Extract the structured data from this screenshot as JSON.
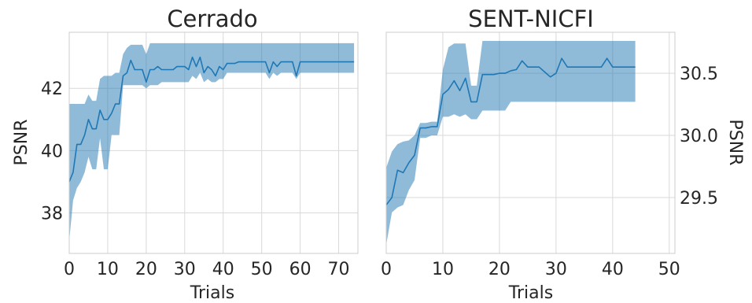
{
  "chart_data": [
    {
      "type": "line",
      "title": "Cerrado",
      "xlabel": "Trials",
      "ylabel": "PSNR",
      "xlim": [
        0,
        75
      ],
      "ylim": [
        36.7,
        43.8
      ],
      "xticks": [
        0,
        10,
        20,
        30,
        40,
        50,
        60,
        70
      ],
      "yticks": [
        38,
        40,
        42
      ],
      "ytick_side": "left",
      "grid": true,
      "color": "#1f77b4",
      "series": [
        {
          "x": [
            0,
            1,
            2,
            3,
            4,
            5,
            6,
            7,
            8,
            9,
            10,
            11,
            12,
            13,
            14,
            15,
            16,
            17,
            18,
            19,
            20,
            21,
            22,
            23,
            24,
            25,
            26,
            27,
            28,
            29,
            30,
            31,
            32,
            33,
            34,
            35,
            36,
            37,
            38,
            39,
            40,
            41,
            42,
            43,
            44,
            45,
            46,
            47,
            48,
            49,
            50,
            51,
            52,
            53,
            54,
            55,
            56,
            57,
            58,
            59,
            60,
            61,
            62,
            63,
            64,
            65,
            66,
            67,
            68,
            69,
            70,
            71,
            72,
            73,
            74
          ],
          "y": [
            39.0,
            39.3,
            40.2,
            40.2,
            40.5,
            41.0,
            40.7,
            40.7,
            41.3,
            41.0,
            41.0,
            41.2,
            41.5,
            41.5,
            42.4,
            42.5,
            42.9,
            42.6,
            42.6,
            42.6,
            42.2,
            42.6,
            42.6,
            42.7,
            42.6,
            42.6,
            42.6,
            42.6,
            42.7,
            42.7,
            42.7,
            42.6,
            43.0,
            42.7,
            43.0,
            42.5,
            42.7,
            42.6,
            42.4,
            42.7,
            42.6,
            42.8,
            42.8,
            42.8,
            42.85,
            42.85,
            42.85,
            42.85,
            42.85,
            42.85,
            42.85,
            42.85,
            42.5,
            42.85,
            42.7,
            42.85,
            42.85,
            42.85,
            42.85,
            42.4,
            42.85,
            42.85,
            42.85,
            42.85,
            42.85,
            42.85,
            42.85,
            42.85,
            42.85,
            42.85,
            42.85,
            42.85,
            42.85,
            42.85,
            42.85
          ],
          "lower": [
            37.1,
            38.4,
            38.8,
            39.0,
            39.3,
            39.8,
            39.4,
            39.4,
            40.4,
            39.4,
            39.4,
            40.5,
            40.5,
            40.5,
            42.1,
            42.1,
            42.1,
            42.1,
            42.1,
            42.1,
            42.0,
            42.1,
            42.1,
            42.1,
            42.2,
            42.2,
            42.2,
            42.2,
            42.2,
            42.2,
            42.2,
            42.2,
            42.4,
            42.3,
            42.5,
            42.2,
            42.3,
            42.2,
            42.2,
            42.3,
            42.3,
            42.5,
            42.5,
            42.5,
            42.5,
            42.5,
            42.5,
            42.5,
            42.5,
            42.5,
            42.5,
            42.5,
            42.3,
            42.5,
            42.4,
            42.5,
            42.5,
            42.5,
            42.5,
            42.3,
            42.5,
            42.5,
            42.5,
            42.5,
            42.5,
            42.5,
            42.5,
            42.5,
            42.5,
            42.5,
            42.5,
            42.5,
            42.5,
            42.5,
            42.5
          ],
          "upper": [
            41.5,
            41.5,
            41.5,
            41.5,
            41.5,
            41.8,
            41.6,
            41.6,
            42.3,
            42.4,
            42.4,
            42.4,
            42.5,
            42.5,
            43.1,
            43.3,
            43.4,
            43.4,
            43.4,
            43.4,
            43.1,
            43.45,
            43.45,
            43.45,
            43.45,
            43.45,
            43.45,
            43.45,
            43.45,
            43.45,
            43.45,
            43.45,
            43.45,
            43.45,
            43.45,
            43.45,
            43.45,
            43.45,
            43.45,
            43.45,
            43.45,
            43.45,
            43.45,
            43.45,
            43.45,
            43.45,
            43.45,
            43.45,
            43.45,
            43.45,
            43.45,
            43.45,
            43.45,
            43.45,
            43.45,
            43.45,
            43.45,
            43.45,
            43.45,
            43.45,
            43.45,
            43.45,
            43.45,
            43.45,
            43.45,
            43.45,
            43.45,
            43.45,
            43.45,
            43.45,
            43.45,
            43.45,
            43.45,
            43.45,
            43.45
          ]
        }
      ]
    },
    {
      "type": "line",
      "title": "SENT-NICFI",
      "xlabel": "Trials",
      "ylabel": "PSNR",
      "xlim": [
        0,
        51
      ],
      "ylim": [
        29.05,
        30.83
      ],
      "xticks": [
        0,
        10,
        20,
        30,
        40,
        50
      ],
      "yticks": [
        29.5,
        30.0,
        30.5
      ],
      "ytick_side": "right",
      "grid": true,
      "color": "#1f77b4",
      "series": [
        {
          "x": [
            0,
            1,
            2,
            3,
            4,
            5,
            6,
            7,
            8,
            9,
            10,
            11,
            12,
            13,
            14,
            15,
            16,
            17,
            18,
            19,
            20,
            21,
            22,
            23,
            24,
            25,
            26,
            27,
            28,
            29,
            30,
            31,
            32,
            33,
            34,
            35,
            36,
            37,
            38,
            39,
            40,
            41,
            42,
            43,
            44
          ],
          "y": [
            29.44,
            29.5,
            29.72,
            29.7,
            29.78,
            29.84,
            30.06,
            30.06,
            30.07,
            30.07,
            30.33,
            30.37,
            30.44,
            30.36,
            30.46,
            30.27,
            30.27,
            30.49,
            30.49,
            30.49,
            30.5,
            30.5,
            30.52,
            30.53,
            30.6,
            30.55,
            30.55,
            30.55,
            30.51,
            30.47,
            30.5,
            30.62,
            30.55,
            30.55,
            30.55,
            30.55,
            30.55,
            30.55,
            30.55,
            30.62,
            30.55,
            30.55,
            30.55,
            30.55,
            30.55
          ],
          "lower": [
            29.12,
            29.38,
            29.42,
            29.44,
            29.56,
            29.64,
            29.98,
            29.98,
            30.0,
            30.0,
            30.15,
            30.15,
            30.17,
            30.15,
            30.17,
            30.13,
            30.13,
            30.2,
            30.2,
            30.2,
            30.2,
            30.2,
            30.27,
            30.27,
            30.27,
            30.27,
            30.27,
            30.27,
            30.27,
            30.27,
            30.27,
            30.27,
            30.27,
            30.27,
            30.27,
            30.27,
            30.27,
            30.27,
            30.27,
            30.27,
            30.27,
            30.27,
            30.27,
            30.27,
            30.27
          ],
          "upper": [
            29.74,
            29.87,
            29.93,
            29.95,
            29.96,
            30.0,
            30.1,
            30.1,
            30.11,
            30.11,
            30.53,
            30.71,
            30.74,
            30.74,
            30.74,
            30.4,
            30.4,
            30.76,
            30.76,
            30.76,
            30.76,
            30.76,
            30.76,
            30.76,
            30.76,
            30.76,
            30.76,
            30.76,
            30.76,
            30.76,
            30.76,
            30.76,
            30.76,
            30.76,
            30.76,
            30.76,
            30.76,
            30.76,
            30.76,
            30.76,
            30.76,
            30.76,
            30.76,
            30.76,
            30.76
          ]
        }
      ]
    }
  ]
}
